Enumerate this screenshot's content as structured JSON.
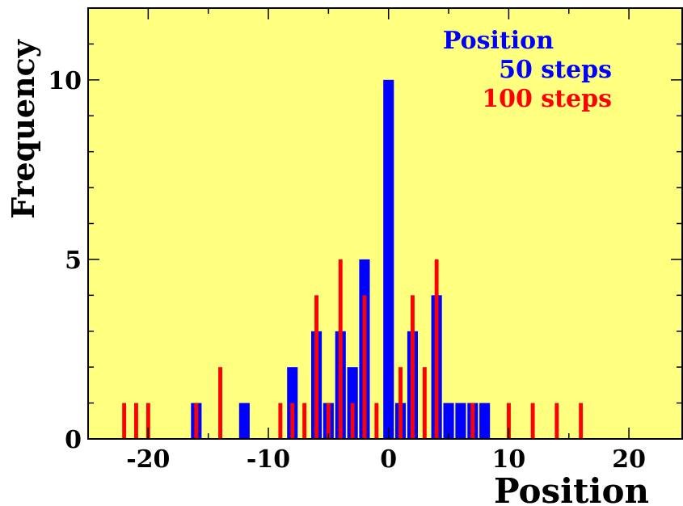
{
  "chart_data": {
    "type": "bar",
    "xlabel": "Position",
    "ylabel": "Frequency",
    "xlim": [
      -25,
      24.5
    ],
    "ylim": [
      0,
      12
    ],
    "x_ticks": [
      -20,
      -10,
      0,
      10,
      20
    ],
    "x_tick_labels": [
      "-20",
      "-10",
      "0",
      "10",
      "20"
    ],
    "y_ticks": [
      0,
      5,
      10
    ],
    "y_tick_labels": [
      "0",
      "5",
      "10"
    ],
    "grid": false,
    "legend_title": "Position",
    "legend_position": "top-right",
    "series": [
      {
        "name": "50 steps",
        "color": "#0000ff",
        "x": [
          -16,
          -12,
          -8,
          -6,
          -5,
          -4,
          -3,
          -2,
          0,
          1,
          2,
          4,
          5,
          6,
          7,
          8
        ],
        "values": [
          1,
          1,
          2,
          3,
          1,
          3,
          2,
          5,
          10,
          1,
          3,
          4,
          1,
          1,
          1,
          1
        ]
      },
      {
        "name": "100 steps",
        "color": "#ff0000",
        "x": [
          -22,
          -21,
          -20,
          -16,
          -14,
          -9,
          -8,
          -7,
          -6,
          -5,
          -4,
          -3,
          -2,
          -1,
          1,
          2,
          3,
          4,
          7,
          10,
          12,
          14,
          16
        ],
        "values": [
          1,
          1,
          1,
          1,
          2,
          1,
          1,
          1,
          4,
          1,
          5,
          1,
          4,
          1,
          2,
          4,
          2,
          5,
          1,
          1,
          1,
          1,
          1
        ]
      }
    ]
  },
  "colors": {
    "plot_background": "#ffff80",
    "frame": "#000000"
  }
}
